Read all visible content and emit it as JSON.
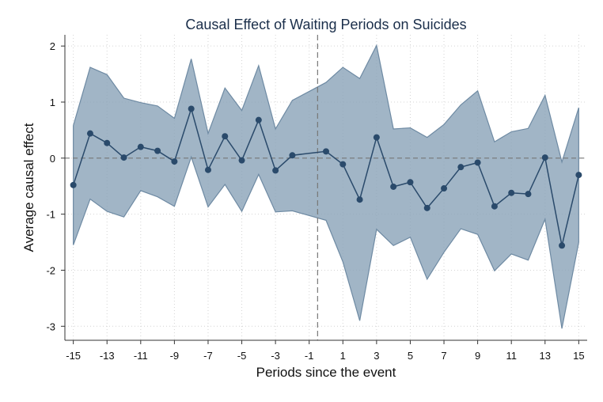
{
  "chart_data": {
    "type": "line",
    "title": "Causal Effect of Waiting Periods on Suicides",
    "xlabel": "Periods since the event",
    "ylabel": "Average causal effect",
    "xlim": [
      -15.5,
      15.5
    ],
    "ylim": [
      -3.25,
      2.2
    ],
    "x_ticks": [
      -15,
      -13,
      -11,
      -9,
      -7,
      -5,
      -3,
      -1,
      1,
      3,
      5,
      7,
      9,
      11,
      13,
      15
    ],
    "x_tick_labels": [
      "-15",
      "-13",
      "-11",
      "-9",
      "-7",
      "-5",
      "-3",
      "-1",
      "1",
      "3",
      "5",
      "7",
      "9",
      "11",
      "13",
      "15"
    ],
    "y_ticks": [
      -3,
      -2,
      -1,
      0,
      1,
      2
    ],
    "y_tick_labels": [
      "-3",
      "-2",
      "-1",
      "0",
      "1",
      "2"
    ],
    "grid": true,
    "reference_line_y": 0,
    "event_line_x": -0.5,
    "colors": {
      "line": "#2a4a6b",
      "band": "#8aa2b8",
      "band_edge": "#6e8aa3",
      "grid": "#d4d4d4",
      "reference": "#777777"
    },
    "x": [
      -15,
      -14,
      -13,
      -12,
      -11,
      -10,
      -9,
      -8,
      -7,
      -6,
      -5,
      -4,
      -3,
      -2,
      0,
      1,
      2,
      3,
      4,
      5,
      6,
      7,
      8,
      9,
      10,
      11,
      12,
      13,
      14,
      15
    ],
    "series": [
      {
        "estimate": [
          -0.48,
          0.44,
          0.27,
          0.01,
          0.2,
          0.13,
          -0.06,
          0.88,
          -0.21,
          0.39,
          -0.04,
          0.68,
          -0.22,
          0.05,
          0.12,
          -0.11,
          -0.74,
          0.37,
          -0.51,
          -0.43,
          -0.89,
          -0.54,
          -0.16,
          -0.08,
          -0.86,
          -0.62,
          -0.64,
          0.01,
          -1.56,
          -0.3
        ],
        "upper": [
          0.58,
          1.62,
          1.49,
          1.07,
          0.99,
          0.93,
          0.71,
          1.77,
          0.44,
          1.25,
          0.85,
          1.65,
          0.52,
          1.03,
          1.35,
          1.62,
          1.42,
          2.01,
          0.52,
          0.54,
          0.37,
          0.6,
          0.95,
          1.2,
          0.29,
          0.47,
          0.53,
          1.12,
          -0.07,
          0.9
        ],
        "lower": [
          -1.55,
          -0.73,
          -0.95,
          -1.05,
          -0.58,
          -0.69,
          -0.86,
          0.02,
          -0.87,
          -0.47,
          -0.95,
          -0.29,
          -0.96,
          -0.94,
          -1.11,
          -1.85,
          -2.9,
          -1.27,
          -1.56,
          -1.41,
          -2.16,
          -1.68,
          -1.26,
          -1.36,
          -2.01,
          -1.71,
          -1.82,
          -1.09,
          -3.04,
          -1.5
        ]
      }
    ]
  }
}
